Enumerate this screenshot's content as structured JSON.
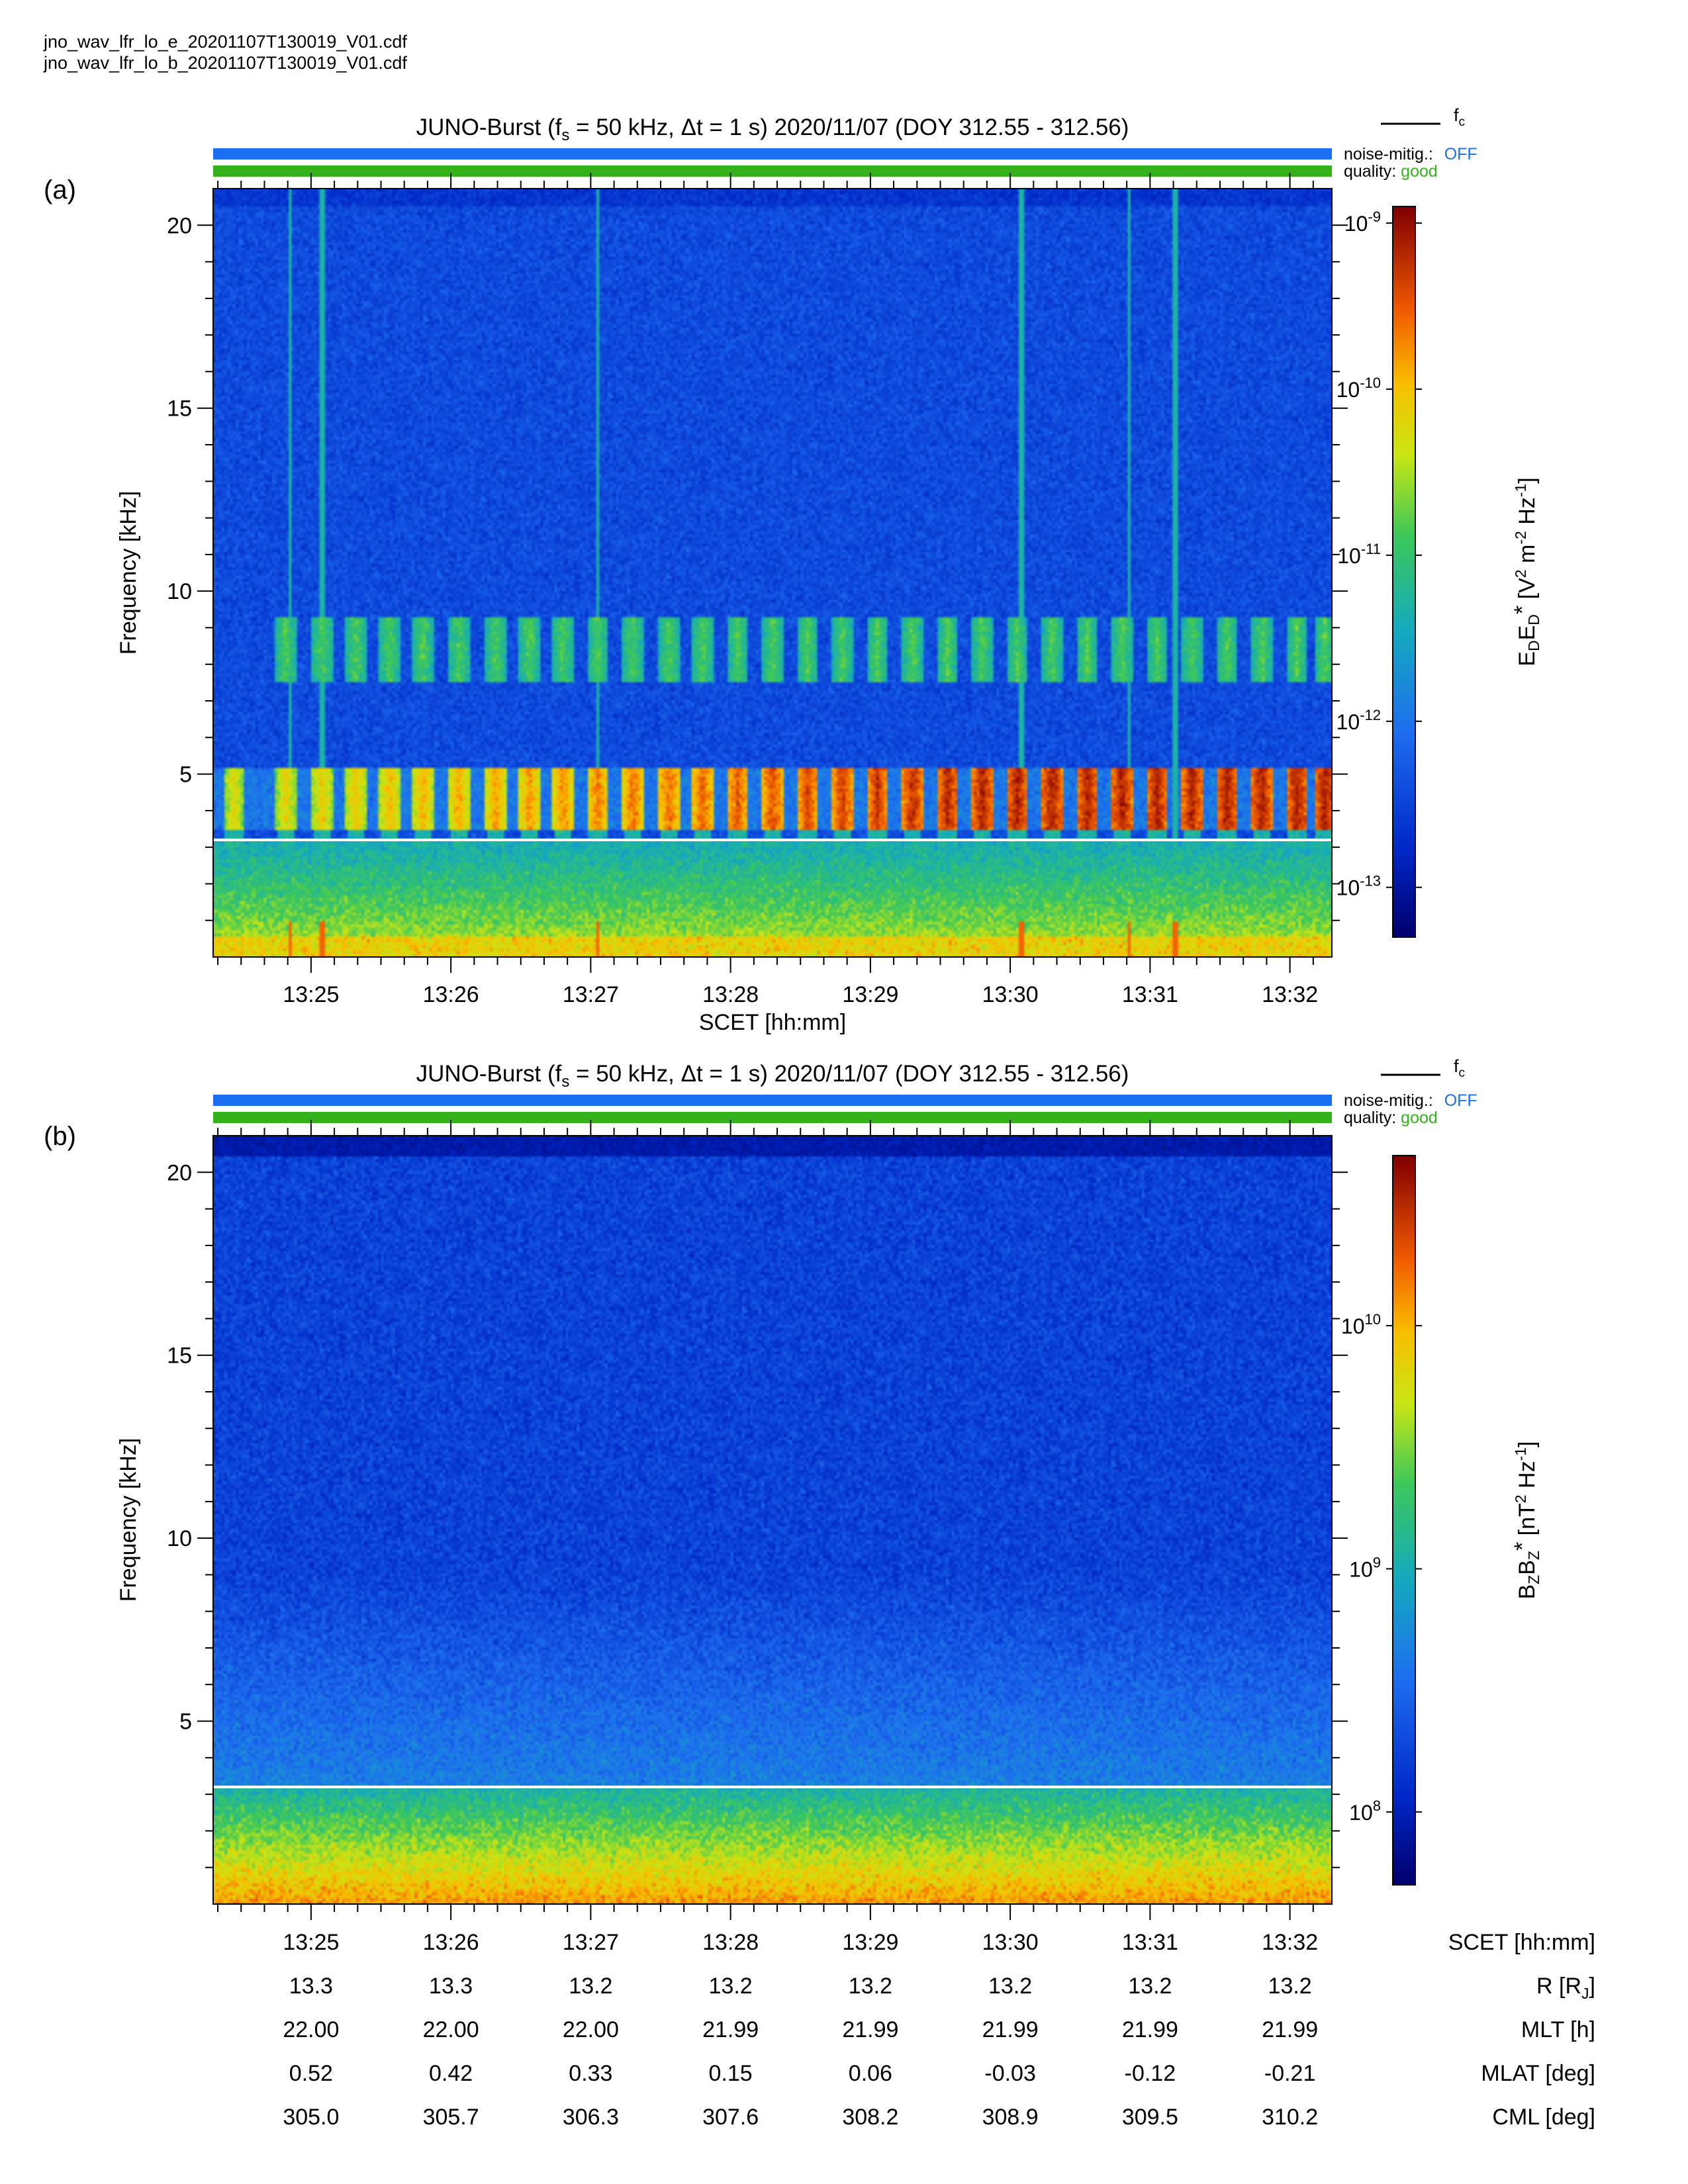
{
  "files": [
    "jno_wav_lfr_lo_e_20201107T130019_V01.cdf",
    "jno_wav_lfr_lo_b_20201107T130019_V01.cdf"
  ],
  "colors": {
    "noise_bar": "#1a6ef0",
    "quality_bar": "#33b319",
    "fc_line": "#ffffff",
    "off": "#1a6ef0",
    "good": "#33b319"
  },
  "chart_data": [
    {
      "panel_label": "(a)",
      "type": "heatmap",
      "title": "JUNO-Burst (fs = 50 kHz, Δt = 1 s)  2020/11/07 (DOY 312.55 - 312.56)",
      "title_parts": {
        "a": "JUNO-Burst (f",
        "sub": "s",
        "b": " = 50 kHz, Δt = 1 s)  2020/11/07 (DOY 312.55 - 312.56)"
      },
      "legend": {
        "line_label": "f",
        "line_sub": "c"
      },
      "status": {
        "noise_label": "noise-mitig.:",
        "noise_value": "OFF",
        "quality_label": "quality:",
        "quality_value": "good"
      },
      "xlabel": "SCET [hh:mm]",
      "ylabel": "Frequency [kHz]",
      "xticks": [
        "13:25",
        "13:26",
        "13:27",
        "13:28",
        "13:29",
        "13:30",
        "13:31",
        "13:32"
      ],
      "xrange_min": [
        24.3,
        32.3
      ],
      "yticks": [
        5,
        10,
        15,
        20
      ],
      "ylim": [
        0,
        21
      ],
      "fc_khz": 3.2,
      "colorbar": {
        "label": "EDED* [V2 m-2 Hz-1]",
        "label_parts": [
          "E",
          "D",
          "E",
          "D",
          "*",
          " [V",
          "2",
          " m",
          "-2",
          " Hz",
          "-1",
          "]"
        ],
        "scale": "log",
        "ticks": [
          {
            "base": "10",
            "exp": "-9"
          },
          {
            "base": "10",
            "exp": "-10"
          },
          {
            "base": "10",
            "exp": "-11"
          },
          {
            "base": "10",
            "exp": "-12"
          },
          {
            "base": "10",
            "exp": "-13"
          }
        ],
        "tick_values": [
          -9,
          -10,
          -11,
          -12,
          -13
        ],
        "range_log": [
          -13.3,
          -8.9
        ]
      },
      "features": {
        "emission_band_khz": [
          3.5,
          5.2
        ],
        "harmonic_band_khz": [
          7.5,
          9.3
        ],
        "bursts_min": [
          24.45,
          24.82,
          25.08,
          25.32,
          25.56,
          25.8,
          26.06,
          26.32,
          26.56,
          26.8,
          27.05,
          27.3,
          27.56,
          27.8,
          28.05,
          28.3,
          28.55,
          28.8,
          29.05,
          29.3,
          29.55,
          29.8,
          30.05,
          30.3,
          30.55,
          30.8,
          31.05,
          31.3,
          31.55,
          31.8,
          32.05,
          32.25
        ],
        "spikes_min": [
          24.85,
          25.08,
          27.05,
          30.08,
          30.85,
          31.18
        ]
      }
    },
    {
      "panel_label": "(b)",
      "type": "heatmap",
      "title": "JUNO-Burst (fs = 50 kHz, Δt = 1 s)  2020/11/07 (DOY 312.55 - 312.56)",
      "title_parts": {
        "a": "JUNO-Burst (f",
        "sub": "s",
        "b": " = 50 kHz, Δt = 1 s)  2020/11/07 (DOY 312.55 - 312.56)"
      },
      "legend": {
        "line_label": "f",
        "line_sub": "c"
      },
      "status": {
        "noise_label": "noise-mitig.:",
        "noise_value": "OFF",
        "quality_label": "quality:",
        "quality_value": "good"
      },
      "ylabel": "Frequency [kHz]",
      "yticks": [
        5,
        10,
        15,
        20
      ],
      "ylim": [
        0,
        21
      ],
      "fc_khz": 3.2,
      "colorbar": {
        "label": "BZBZ* [nT2 Hz-1]",
        "label_parts": [
          "B",
          "Z",
          "B",
          "Z",
          "*",
          " [nT",
          "2",
          " Hz",
          "-1",
          "]"
        ],
        "scale": "log",
        "ticks": [
          {
            "base": "10",
            "exp": "10"
          },
          {
            "base": "10",
            "exp": "9"
          },
          {
            "base": "10",
            "exp": "8"
          }
        ],
        "tick_values": [
          10,
          9,
          8
        ],
        "range_log": [
          7.7,
          10.7
        ]
      }
    }
  ],
  "ephemeris": {
    "times": [
      "13:25",
      "13:26",
      "13:27",
      "13:28",
      "13:29",
      "13:30",
      "13:31",
      "13:32"
    ],
    "rows": [
      {
        "label": "SCET [hh:mm]",
        "values": [
          "13:25",
          "13:26",
          "13:27",
          "13:28",
          "13:29",
          "13:30",
          "13:31",
          "13:32"
        ]
      },
      {
        "label": "R [RJ]",
        "label_main": "R [R",
        "label_sub": "J",
        "label_end": "]",
        "values": [
          "13.3",
          "13.3",
          "13.2",
          "13.2",
          "13.2",
          "13.2",
          "13.2",
          "13.2"
        ]
      },
      {
        "label": "MLT [h]",
        "values": [
          "22.00",
          "22.00",
          "22.00",
          "21.99",
          "21.99",
          "21.99",
          "21.99",
          "21.99"
        ]
      },
      {
        "label": "MLAT [deg]",
        "values": [
          "0.52",
          "0.42",
          "0.33",
          "0.15",
          "0.06",
          "-0.03",
          "-0.12",
          "-0.21"
        ]
      },
      {
        "label": "CML [deg]",
        "values": [
          "305.0",
          "305.7",
          "306.3",
          "307.6",
          "308.2",
          "308.9",
          "309.5",
          "310.2"
        ]
      }
    ]
  }
}
